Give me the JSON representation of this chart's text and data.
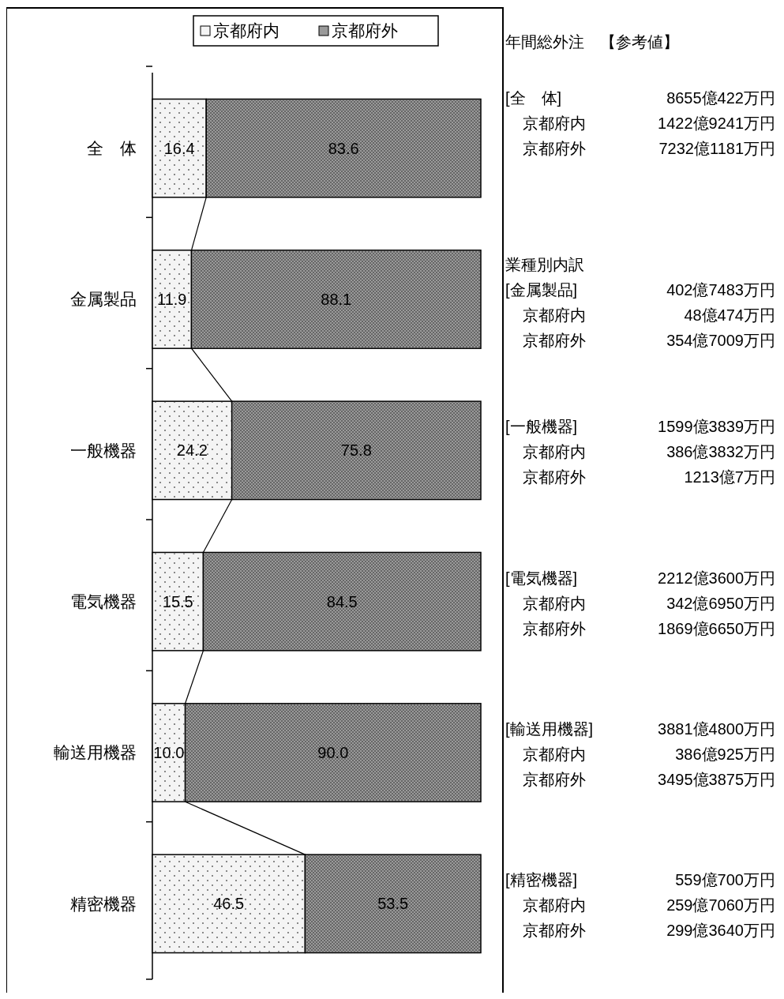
{
  "chart_data": {
    "type": "bar",
    "orientation": "horizontal",
    "stacked": true,
    "legend": "top",
    "categories": [
      "全　体",
      "金属製品",
      "一般機器",
      "電気機器",
      "輸送用機器",
      "精密機器"
    ],
    "series": [
      {
        "name": "京都府内",
        "color": "#f4f4f4",
        "values": [
          16.4,
          11.9,
          24.2,
          15.5,
          10.0,
          46.5
        ],
        "value_labels": [
          "16.4",
          "11.9",
          "24.2",
          "15.5",
          "10.0",
          "46.5"
        ]
      },
      {
        "name": "京都府外",
        "color": "#9a9a9a",
        "values": [
          83.6,
          88.1,
          75.8,
          84.5,
          90.0,
          53.5
        ],
        "value_labels": [
          "83.6",
          "88.1",
          "75.8",
          "84.5",
          "90.0",
          "53.5"
        ]
      }
    ],
    "annotations": [
      "年間総外注　【参考値】",
      "[全　体] 8655億422万円",
      "京都府内 1422億9241万円",
      "京都府外 7232億1181万円",
      "業種別内訳",
      "[金属製品] 402億7483万円",
      "京都府内 48億474万円",
      "京都府外 354億7009万円",
      "[一般機器] 1599億3839万円",
      "京都府内 386億3832万円",
      "京都府外 1213億7万円",
      "[電気機器] 2212億3600万円",
      "京都府内 342億6950万円",
      "京都府外 1869億6650万円",
      "[輸送用機器] 3881億4800万円",
      "京都府内 386億925万円",
      "京都府外 3495億3875万円",
      "[精密機器] 559億700万円",
      "京都府内 259億7060万円",
      "京都府外 299億3640万円"
    ]
  }
}
